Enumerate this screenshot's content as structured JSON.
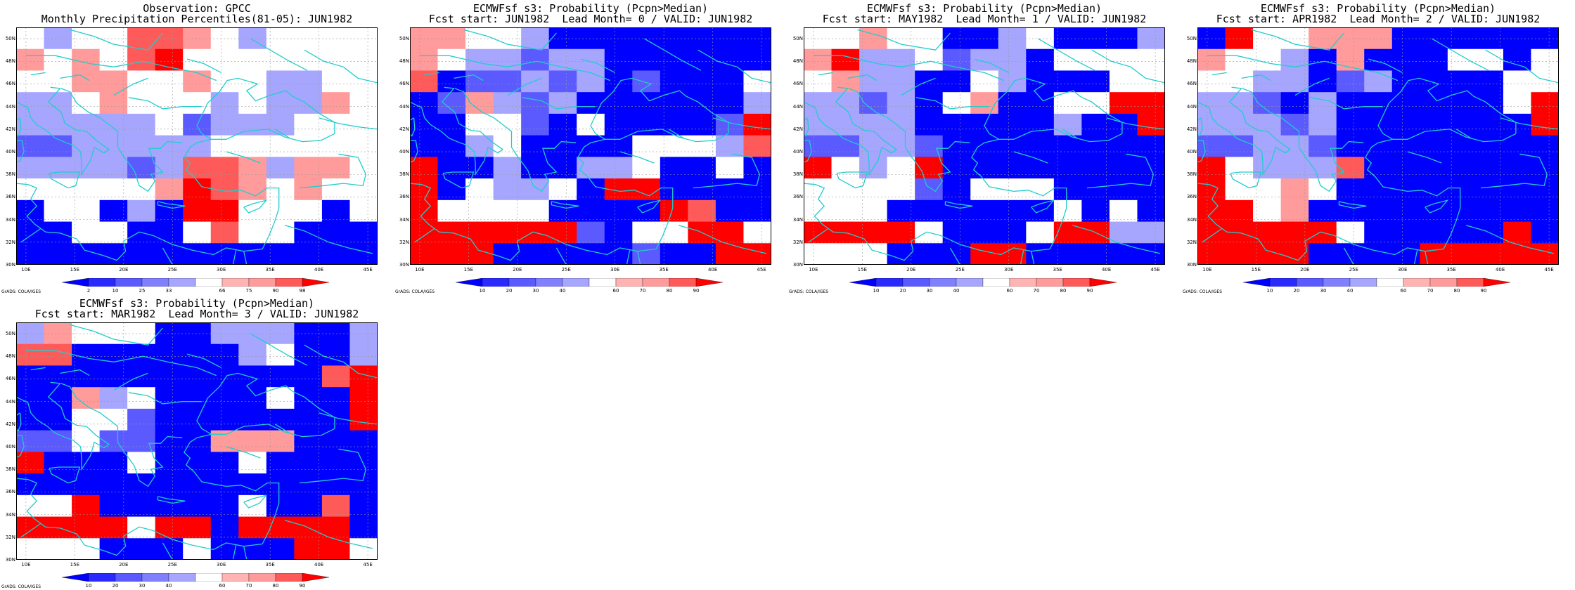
{
  "map_common": {
    "lat_labels": [
      "50N",
      "48N",
      "46N",
      "44N",
      "42N",
      "40N",
      "38N",
      "36N",
      "34N",
      "32N",
      "30N"
    ],
    "lon_labels": [
      "10E",
      "15E",
      "20E",
      "25E",
      "30E",
      "35E",
      "40E",
      "45E"
    ],
    "lon_range": [
      9,
      46
    ],
    "lat_range": [
      30,
      51
    ],
    "grid_lines": true,
    "cell_colors": {
      "0": "#0000ff",
      "1": "#5a5aff",
      "2": "#a6a6ff",
      "3": "#ffffff",
      "4": "#ff9b9b",
      "5": "#ff5a5a",
      "6": "#ff0000"
    },
    "coast_color": "#22cccc",
    "footer": "GrADS: COLA/IGES"
  },
  "panels": [
    {
      "title_line1": "Observation: GPCC",
      "title_line2": "Monthly Precipitation Percentiles(81-05): JUN1982",
      "colorbar_labels": [
        "2",
        "10",
        "25",
        "33",
        "66",
        "75",
        "90",
        "98"
      ],
      "grid": [
        "3233554323333",
        "4343563333333",
        "3344334332233",
        "2234333232243",
        "2222231222333",
        "1122222333333",
        "2222125542443",
        "3333346543433",
        "0330206633303",
        "0033003533000",
        "0000000000000"
      ]
    },
    {
      "title_line1": "ECMWFsf s3: Probability (Pcpn>Median)",
      "title_line2": "Fcst start: JUN1982  Lead Month= 0 / VALID: JUN1982",
      "colorbar_labels": [
        "10",
        "20",
        "30",
        "40",
        "60",
        "70",
        "80",
        "90"
      ],
      "grid": [
        "4433200000000",
        "4322122000000",
        "5011212010003",
        "0142120000002",
        "0033103000016",
        "0023000033325",
        "6002002230030",
        "6032230660000",
        "6333300006500",
        "6666661033663",
        "6660000010066"
      ]
    },
    {
      "title_line1": "ECMWFsf s3: Probability (Pcpn>Median)",
      "title_line2": "Fcst start: MAY1982  Lead Month= 1 / VALID: JUN1982",
      "colorbar_labels": [
        "10",
        "20",
        "30",
        "40",
        "60",
        "70",
        "80",
        "90"
      ],
      "grid": [
        "3343300230002",
        "4622312203333",
        "3422003200033",
        "2212034003366",
        "2222000002006",
        "1122100000000",
        "6323600000000",
        "3333103330000",
        "3330000003030",
        "6666300036622",
        "3330006600000"
      ]
    },
    {
      "title_line1": "ECMWFsf s3: Probability (Pcpn>Median)",
      "title_line2": "Fcst start: APR1982  Lead Month= 2 / VALID: JUN1982",
      "colorbar_labels": [
        "10",
        "20",
        "30",
        "40",
        "60",
        "70",
        "80",
        "90"
      ],
      "grid": [
        "0633444000000",
        "4332040003303",
        "3322012000033",
        "2210200000036",
        "2221200000006",
        "1122100000000",
        "6322250000000",
        "6334300000000",
        "6634000000000",
        "6666630000060",
        "6666000066666"
      ]
    },
    {
      "title_line1": "ECMWFsf s3: Probability (Pcpn>Median)",
      "title_line2": "Fcst start: MAR1982  Lead Month= 3 / VALID: JUN1982",
      "colorbar_labels": [
        "10",
        "20",
        "30",
        "40",
        "60",
        "70",
        "80",
        "90"
      ],
      "grid": [
        "2433300222002",
        "5500000023002",
        "0000000000056",
        "0042300003006",
        "0033100000006",
        "1131100444000",
        "6000300030000",
        "0000000000000",
        "3360000030050",
        "6666366066660",
        "3330003000663"
      ]
    }
  ]
}
